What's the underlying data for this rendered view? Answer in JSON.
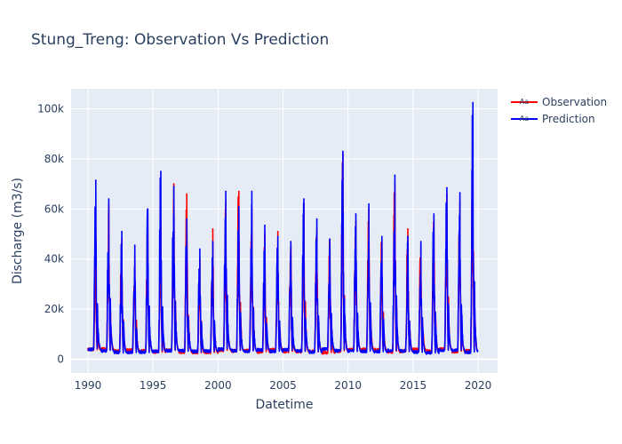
{
  "chart_data": {
    "type": "line",
    "title": "Stung_Treng: Observation Vs Prediction",
    "xlabel": "Datetime",
    "ylabel": "Discharge (m3/s)",
    "x_ticks": [
      1990,
      1995,
      2000,
      2005,
      2010,
      2015,
      2020
    ],
    "x_tick_labels": [
      "1990",
      "1995",
      "2000",
      "2005",
      "2010",
      "2015",
      "2020"
    ],
    "y_ticks": [
      0,
      20000,
      40000,
      60000,
      80000,
      100000
    ],
    "y_tick_labels": [
      "0",
      "20k",
      "40k",
      "60k",
      "80k",
      "100k"
    ],
    "xlim": [
      1988.7,
      2021.5
    ],
    "ylim": [
      -5500,
      108000
    ],
    "grid": true,
    "legend_position": "top-right",
    "legend_glyph_text": "Aa",
    "series": [
      {
        "name": "Observation",
        "color": "#ff0000",
        "annual_peaks": [
          {
            "year": 1990,
            "peak": 40000
          },
          {
            "year": 1991,
            "peak": 62000
          },
          {
            "year": 1992,
            "peak": 48000
          },
          {
            "year": 1993,
            "peak": 42000
          },
          {
            "year": 1994,
            "peak": 58000
          },
          {
            "year": 1995,
            "peak": 55000
          },
          {
            "year": 1996,
            "peak": 70000
          },
          {
            "year": 1997,
            "peak": 66000
          },
          {
            "year": 1998,
            "peak": 40000
          },
          {
            "year": 1999,
            "peak": 52000
          },
          {
            "year": 2000,
            "peak": 63000
          },
          {
            "year": 2001,
            "peak": 67000
          },
          {
            "year": 2002,
            "peak": 60000
          },
          {
            "year": 2003,
            "peak": 50000
          },
          {
            "year": 2004,
            "peak": 51000
          },
          {
            "year": 2005,
            "peak": 46000
          },
          {
            "year": 2006,
            "peak": 62000
          },
          {
            "year": 2007,
            "peak": 52000
          },
          {
            "year": 2008,
            "peak": 48000
          },
          {
            "year": 2009,
            "peak": 82000
          },
          {
            "year": 2010,
            "peak": 55000
          },
          {
            "year": 2011,
            "peak": 60000
          },
          {
            "year": 2012,
            "peak": 48000
          },
          {
            "year": 2013,
            "peak": 70000
          },
          {
            "year": 2014,
            "peak": 52000
          },
          {
            "year": 2015,
            "peak": 46000
          },
          {
            "year": 2016,
            "peak": 56000
          },
          {
            "year": 2017,
            "peak": 66000
          },
          {
            "year": 2018,
            "peak": 62000
          },
          {
            "year": 2019,
            "peak": 80000
          }
        ]
      },
      {
        "name": "Prediction",
        "color": "#0000ff",
        "annual_peaks": [
          {
            "year": 1990,
            "peak": 71500
          },
          {
            "year": 1991,
            "peak": 64000
          },
          {
            "year": 1992,
            "peak": 51000
          },
          {
            "year": 1993,
            "peak": 45500
          },
          {
            "year": 1994,
            "peak": 60000
          },
          {
            "year": 1995,
            "peak": 75000
          },
          {
            "year": 1996,
            "peak": 69000
          },
          {
            "year": 1997,
            "peak": 56000
          },
          {
            "year": 1998,
            "peak": 44000
          },
          {
            "year": 1999,
            "peak": 47000
          },
          {
            "year": 2000,
            "peak": 67000
          },
          {
            "year": 2001,
            "peak": 61000
          },
          {
            "year": 2002,
            "peak": 67000
          },
          {
            "year": 2003,
            "peak": 53500
          },
          {
            "year": 2004,
            "peak": 49000
          },
          {
            "year": 2005,
            "peak": 47000
          },
          {
            "year": 2006,
            "peak": 64000
          },
          {
            "year": 2007,
            "peak": 56000
          },
          {
            "year": 2008,
            "peak": 48000
          },
          {
            "year": 2009,
            "peak": 83000
          },
          {
            "year": 2010,
            "peak": 58000
          },
          {
            "year": 2011,
            "peak": 62000
          },
          {
            "year": 2012,
            "peak": 49000
          },
          {
            "year": 2013,
            "peak": 73500
          },
          {
            "year": 2014,
            "peak": 49000
          },
          {
            "year": 2015,
            "peak": 47000
          },
          {
            "year": 2016,
            "peak": 58000
          },
          {
            "year": 2017,
            "peak": 68500
          },
          {
            "year": 2018,
            "peak": 66500
          },
          {
            "year": 2019,
            "peak": 102500
          }
        ]
      }
    ]
  }
}
